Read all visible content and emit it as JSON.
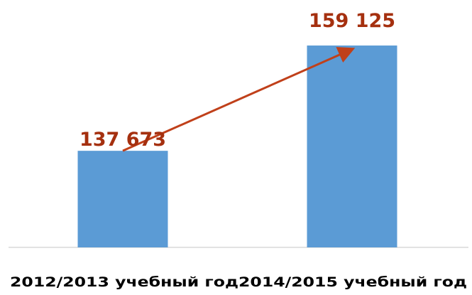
{
  "colors": {
    "bar": "#5b9bd5",
    "label": "#a5300f",
    "arrow": "#c0401a",
    "axis": "#d9d9d9"
  },
  "chart_data": {
    "type": "bar",
    "categories": [
      "2012/2013 учебный год",
      "2014/2015 учебный год"
    ],
    "values": [
      137673,
      159125
    ],
    "data_labels": [
      "137 673",
      "159 125"
    ],
    "annotations": [
      {
        "type": "arrow",
        "from_category": 0,
        "to_category": 1
      }
    ],
    "ylim": [
      118000,
      160000
    ],
    "grid": false,
    "legend": "none"
  }
}
